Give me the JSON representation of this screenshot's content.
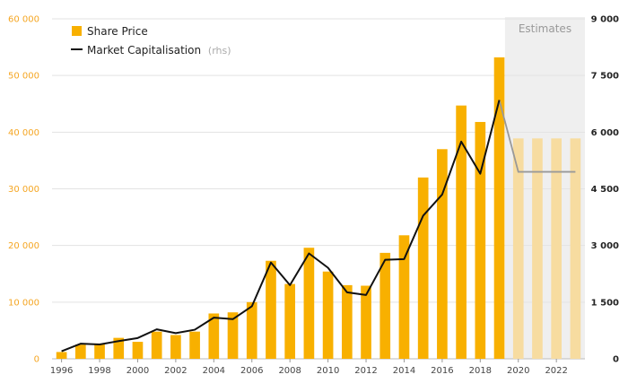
{
  "chart_data": {
    "type": "bar",
    "x": [
      1996,
      1997,
      1998,
      1999,
      2000,
      2001,
      2002,
      2003,
      2004,
      2005,
      2006,
      2007,
      2008,
      2009,
      2010,
      2011,
      2012,
      2013,
      2014,
      2015,
      2016,
      2017,
      2018,
      2019,
      2020,
      2021,
      2022,
      2023
    ],
    "x_tick_labels": [
      "1996",
      "1998",
      "2000",
      "2002",
      "2004",
      "2006",
      "2008",
      "2010",
      "2012",
      "2014",
      "2016",
      "2018",
      "2020",
      "2022"
    ],
    "series": [
      {
        "name": "Share Price",
        "type": "bar",
        "axis": "left",
        "color": "#f8b000",
        "values": [
          1200,
          2500,
          2700,
          3700,
          3000,
          4800,
          4200,
          4800,
          8000,
          8200,
          10000,
          17300,
          13200,
          19600,
          15400,
          13000,
          12900,
          18700,
          21800,
          32000,
          37000,
          44700,
          41800,
          53200,
          38900,
          38900,
          38900,
          38900
        ]
      },
      {
        "name": "Market Capitalisation",
        "name_suffix": "(rhs)",
        "type": "line",
        "axis": "right",
        "color": "#111111",
        "estimate_color": "#999999",
        "values": [
          200,
          400,
          380,
          470,
          550,
          780,
          680,
          770,
          1090,
          1050,
          1390,
          2550,
          1950,
          2790,
          2410,
          1760,
          1690,
          2620,
          2640,
          3790,
          4350,
          5750,
          4900,
          6850,
          4950,
          4950,
          4950,
          4950
        ]
      }
    ],
    "estimates": {
      "label": "Estimates",
      "start_year": 2019,
      "end_year": 2023,
      "estimate_bar_color": "#f7dca0",
      "shade_color": "#efefef"
    },
    "y_left": {
      "ylim": [
        0,
        60000
      ],
      "ticks": [
        0,
        10000,
        20000,
        30000,
        40000,
        50000,
        60000
      ],
      "tick_labels": [
        "0",
        "10 000",
        "20 000",
        "30 000",
        "40 000",
        "50 000",
        "60 000"
      ],
      "color": "#f5a623"
    },
    "y_right": {
      "ylim": [
        0,
        9000
      ],
      "ticks": [
        0,
        1500,
        3000,
        4500,
        6000,
        7500,
        9000
      ],
      "tick_labels": [
        "0",
        "1 500",
        "3 000",
        "4 500",
        "6 000",
        "7 500",
        "9 000"
      ],
      "color": "#222222"
    },
    "grid": true,
    "legend_position": "top-left",
    "title": "",
    "xlabel": "",
    "ylabel": ""
  }
}
